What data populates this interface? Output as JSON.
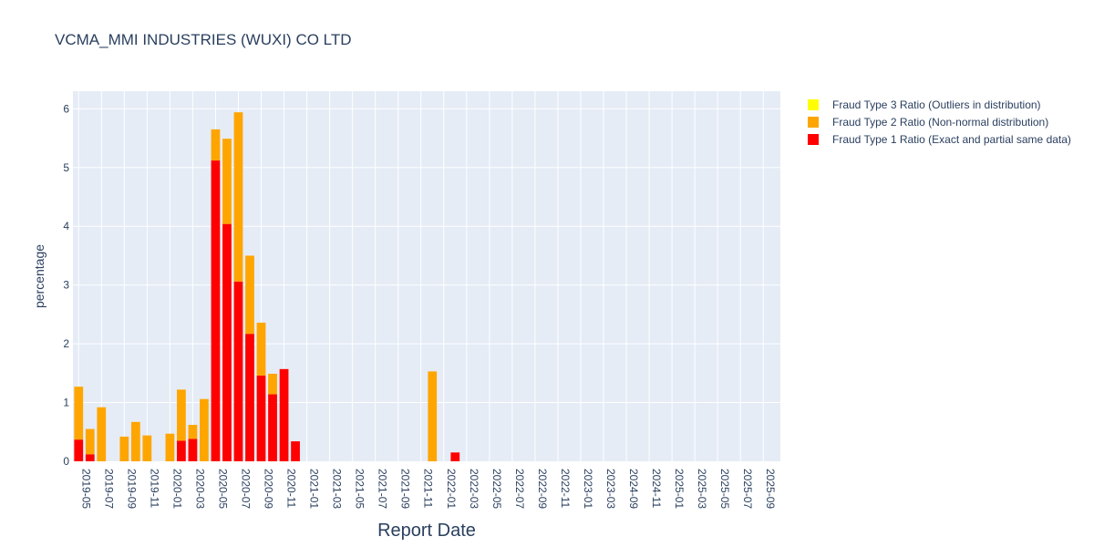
{
  "colors": {
    "type1": "#ff0000",
    "type2": "#ffa500",
    "type3": "#ffff00",
    "plot_bg": "#e5ecf6",
    "grid": "#ffffff",
    "text": "#2a3f5f"
  },
  "chart_data": {
    "type": "bar",
    "barmode": "stack",
    "title": "VCMA_MMI INDUSTRIES (WUXI) CO LTD",
    "xlabel": "Report Date",
    "ylabel": "percentage",
    "ylim": [
      0,
      6.3
    ],
    "yticks": [
      0,
      1,
      2,
      3,
      4,
      5,
      6
    ],
    "grid": true,
    "legend_position": "top-right",
    "categories": [
      "2019-05",
      "2019-06",
      "2019-07",
      "2019-08",
      "2019-09",
      "2019-10",
      "2019-11",
      "2019-12",
      "2020-01",
      "2020-02",
      "2020-03",
      "2020-04",
      "2020-05",
      "2020-06",
      "2020-07",
      "2020-08",
      "2020-09",
      "2020-10",
      "2020-11",
      "2020-12",
      "2021-01",
      "2021-02",
      "2021-03",
      "2021-04",
      "2021-05",
      "2021-06",
      "2021-07",
      "2021-08",
      "2021-09",
      "2021-10",
      "2021-11",
      "2021-12",
      "2022-01",
      "2022-02",
      "2022-03",
      "2022-04",
      "2022-05",
      "2022-06",
      "2022-07",
      "2022-08",
      "2022-09",
      "2022-10",
      "2022-11",
      "2022-12",
      "2023-01",
      "2023-02",
      "2023-03",
      "2023-04",
      "2024-09",
      "2024-10",
      "2024-11",
      "2024-12",
      "2025-01",
      "2025-02",
      "2025-03",
      "2025-04",
      "2025-05",
      "2025-06",
      "2025-07",
      "2025-08",
      "2025-09",
      "2025-10"
    ],
    "tick_labels": [
      "2019-05",
      "2019-07",
      "2019-09",
      "2019-11",
      "2020-01",
      "2020-03",
      "2020-05",
      "2020-07",
      "2020-09",
      "2020-11",
      "2021-01",
      "2021-03",
      "2021-05",
      "2021-07",
      "2021-09",
      "2021-11",
      "2022-01",
      "2022-03",
      "2022-05",
      "2022-07",
      "2022-09",
      "2022-11",
      "2023-01",
      "2023-03",
      "2024-09",
      "2024-11",
      "2025-01",
      "2025-03",
      "2025-05",
      "2025-07",
      "2025-09"
    ],
    "series": [
      {
        "name": "Fraud Type 3 Ratio (Outliers in distribution)",
        "color": "#ffff00",
        "values": [
          0,
          0,
          0,
          0,
          0,
          0,
          0,
          0,
          0,
          0,
          0,
          0,
          0,
          0,
          0,
          0,
          0,
          0,
          0,
          0,
          0,
          0,
          0,
          0,
          0,
          0,
          0,
          0,
          0,
          0,
          0,
          0,
          0,
          0,
          0,
          0,
          0,
          0,
          0,
          0,
          0,
          0,
          0,
          0,
          0,
          0,
          0,
          0,
          0,
          0,
          0,
          0,
          0,
          0,
          0,
          0,
          0,
          0,
          0,
          0,
          0,
          0
        ]
      },
      {
        "name": "Fraud Type 2 Ratio (Non-normal distribution)",
        "color": "#ffa500",
        "values": [
          0.9,
          0.43,
          0.92,
          0,
          0.42,
          0.67,
          0.44,
          0,
          0.47,
          0.87,
          0.24,
          1.06,
          0.53,
          1.45,
          2.88,
          1.33,
          0.9,
          0.35,
          0,
          0,
          0,
          0,
          0,
          0,
          0,
          0,
          0,
          0,
          0,
          0,
          0,
          1.53,
          0,
          0,
          0,
          0,
          0,
          0,
          0,
          0,
          0,
          0,
          0,
          0,
          0,
          0,
          0,
          0,
          0,
          0,
          0,
          0,
          0,
          0,
          0,
          0,
          0,
          0,
          0,
          0,
          0,
          0
        ]
      },
      {
        "name": "Fraud Type 1 Ratio (Exact and partial same data)",
        "color": "#ff0000",
        "values": [
          0.37,
          0.12,
          0,
          0,
          0,
          0,
          0,
          0,
          0,
          0.35,
          0.38,
          0,
          5.12,
          4.04,
          3.06,
          2.17,
          1.46,
          1.14,
          1.57,
          0.34,
          0,
          0,
          0,
          0,
          0,
          0,
          0,
          0,
          0,
          0,
          0,
          0,
          0,
          0.15,
          0,
          0,
          0,
          0,
          0,
          0,
          0,
          0,
          0,
          0,
          0,
          0,
          0,
          0,
          0,
          0,
          0,
          0,
          0,
          0,
          0,
          0,
          0,
          0,
          0,
          0,
          0,
          0
        ]
      }
    ]
  }
}
